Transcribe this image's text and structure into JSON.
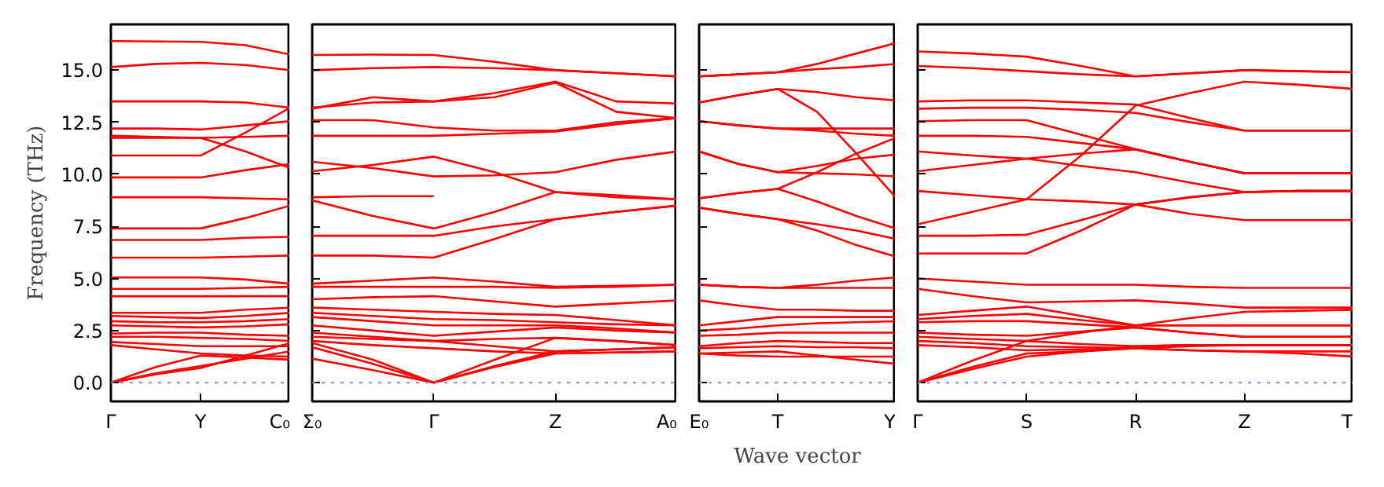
{
  "chart_data": [
    {
      "type": "line",
      "ylabel": "Frequency (THz)",
      "categories": [
        "Γ",
        null,
        "Y",
        null,
        "C₀"
      ],
      "ylim": [
        -0.9,
        17.2
      ],
      "yticks": [
        {
          "value": 0,
          "label": "0.0"
        },
        {
          "value": 2.5,
          "label": "2.5"
        },
        {
          "value": 5,
          "label": "5.0"
        },
        {
          "value": 7.5,
          "label": "7.5"
        },
        {
          "value": 10,
          "label": "10.0"
        },
        {
          "value": 12.5,
          "label": "12.5"
        },
        {
          "value": 15,
          "label": "15.0"
        }
      ],
      "ref_lines": [
        {
          "axis": "y",
          "value": 0,
          "color": "#8080ff",
          "line_style": "dotted"
        }
      ],
      "series": [
        {
          "color": "#ff0000",
          "values": [
            16.4,
            16.38,
            16.36,
            16.2,
            15.75
          ]
        },
        {
          "color": "#ff0000",
          "values": [
            15.15,
            15.3,
            15.35,
            15.25,
            15.0
          ]
        },
        {
          "color": "#ff0000",
          "values": [
            13.5,
            13.5,
            13.5,
            13.45,
            13.2
          ]
        },
        {
          "color": "#ff0000",
          "values": [
            12.2,
            12.2,
            12.15,
            12.35,
            12.55
          ]
        },
        {
          "color": "#ff0000",
          "values": [
            11.85,
            11.8,
            11.75,
            11.1,
            10.3
          ]
        },
        {
          "color": "#ff0000",
          "values": [
            11.75,
            11.75,
            11.75,
            11.8,
            11.85
          ]
        },
        {
          "color": "#ff0000",
          "values": [
            10.9,
            10.9,
            10.9,
            12.0,
            13.2
          ]
        },
        {
          "color": "#ff0000",
          "values": [
            9.85,
            9.85,
            9.85,
            10.2,
            10.5
          ]
        },
        {
          "color": "#ff0000",
          "values": [
            8.9,
            8.9,
            8.9,
            8.85,
            8.8
          ]
        },
        {
          "color": "#ff0000",
          "values": [
            7.4,
            7.4,
            7.4,
            7.9,
            8.5
          ]
        },
        {
          "color": "#ff0000",
          "values": [
            6.85,
            6.85,
            6.85,
            6.95,
            7.0
          ]
        },
        {
          "color": "#ff0000",
          "values": [
            6.0,
            6.0,
            6.0,
            6.05,
            6.1
          ]
        },
        {
          "color": "#ff0000",
          "values": [
            5.05,
            5.05,
            5.05,
            4.95,
            4.75
          ]
        },
        {
          "color": "#ff0000",
          "values": [
            4.5,
            4.5,
            4.5,
            4.55,
            4.6
          ]
        },
        {
          "color": "#ff0000",
          "values": [
            4.15,
            4.15,
            4.15,
            4.15,
            4.15
          ]
        },
        {
          "color": "#ff0000",
          "values": [
            3.35,
            3.35,
            3.35,
            3.5,
            3.6
          ]
        },
        {
          "color": "#ff0000",
          "values": [
            3.2,
            3.15,
            3.1,
            3.2,
            3.35
          ]
        },
        {
          "color": "#ff0000",
          "values": [
            2.95,
            2.9,
            2.9,
            2.95,
            3.05
          ]
        },
        {
          "color": "#ff0000",
          "values": [
            2.75,
            2.7,
            2.65,
            2.7,
            2.8
          ]
        },
        {
          "color": "#ff0000",
          "values": [
            2.35,
            2.4,
            2.4,
            2.3,
            2.25
          ]
        },
        {
          "color": "#ff0000",
          "values": [
            2.2,
            2.2,
            2.15,
            2.1,
            2.0
          ]
        },
        {
          "color": "#ff0000",
          "values": [
            1.95,
            1.85,
            1.75,
            1.75,
            1.75
          ]
        },
        {
          "color": "#ff0000",
          "values": [
            1.8,
            1.6,
            1.4,
            1.3,
            1.25
          ]
        },
        {
          "color": "#ff0000",
          "values": [
            0,
            0.75,
            1.3,
            1.2,
            1.1
          ]
        },
        {
          "color": "#ff0000",
          "values": [
            0,
            0.45,
            0.8,
            1.15,
            1.5
          ]
        },
        {
          "color": "#ff0000",
          "values": [
            0,
            0.4,
            0.7,
            1.3,
            1.9
          ]
        }
      ]
    },
    {
      "type": "line",
      "tick_labels": "x",
      "categories": [
        "Σ₀",
        null,
        "Γ",
        null,
        "Z",
        null,
        "A₀"
      ],
      "ylim": [
        -0.9,
        17.2
      ],
      "yticks": [
        {
          "value": 0,
          "label": null
        },
        {
          "value": 2.5,
          "label": null
        },
        {
          "value": 5,
          "label": null
        },
        {
          "value": 7.5,
          "label": null
        },
        {
          "value": 10,
          "label": null
        },
        {
          "value": 12.5,
          "label": null
        },
        {
          "value": 15,
          "label": null
        }
      ],
      "ref_lines": [
        {
          "axis": "y",
          "value": 0,
          "color": "#8080ff",
          "line_style": "dotted"
        }
      ],
      "series": [
        {
          "color": "#ff0000",
          "values": [
            15.73,
            15.75,
            15.73,
            15.4,
            15.0,
            14.85,
            14.7
          ]
        },
        {
          "color": "#ff0000",
          "values": [
            15.0,
            15.1,
            15.15,
            15.1,
            15.0,
            14.85,
            14.7
          ]
        },
        {
          "color": "#ff0000",
          "values": [
            13.15,
            13.7,
            13.5,
            13.9,
            14.45,
            13.5,
            13.4
          ]
        },
        {
          "color": "#ff0000",
          "values": [
            13.2,
            13.45,
            13.5,
            13.7,
            14.4,
            13.0,
            12.7
          ]
        },
        {
          "color": "#ff0000",
          "values": [
            12.6,
            12.6,
            12.25,
            12.1,
            12.1,
            12.5,
            12.7
          ]
        },
        {
          "color": "#ff0000",
          "values": [
            11.85,
            11.85,
            11.85,
            11.95,
            12.05,
            12.4,
            12.7
          ]
        },
        {
          "color": "#ff0000",
          "values": [
            10.15,
            10.45,
            10.85,
            10.1,
            9.15,
            9.0,
            8.8
          ]
        },
        {
          "color": "#ff0000",
          "values": [
            10.6,
            10.3,
            9.9,
            9.95,
            10.1,
            10.7,
            11.1
          ]
        },
        {
          "color": "#ff0000",
          "values": [
            8.9,
            8.95,
            8.95,
            null,
            null,
            null,
            null
          ]
        },
        {
          "color": "#ff0000",
          "values": [
            8.75,
            8.0,
            7.4,
            8.2,
            9.15,
            8.9,
            8.8
          ]
        },
        {
          "color": "#ff0000",
          "values": [
            7.05,
            7.05,
            7.05,
            7.5,
            7.85,
            8.2,
            8.5
          ]
        },
        {
          "color": "#ff0000",
          "values": [
            6.1,
            6.1,
            6.0,
            6.9,
            7.85,
            8.2,
            8.5
          ]
        },
        {
          "color": "#ff0000",
          "values": [
            4.75,
            4.9,
            5.05,
            4.85,
            4.6,
            4.65,
            4.7
          ]
        },
        {
          "color": "#ff0000",
          "values": [
            4.6,
            4.6,
            4.6,
            4.6,
            4.55,
            4.6,
            4.7
          ]
        },
        {
          "color": "#ff0000",
          "values": [
            4.0,
            4.1,
            4.15,
            3.9,
            3.65,
            3.8,
            3.95
          ]
        },
        {
          "color": "#ff0000",
          "values": [
            3.6,
            3.5,
            3.4,
            3.3,
            3.25,
            3.0,
            2.75
          ]
        },
        {
          "color": "#ff0000",
          "values": [
            3.35,
            3.2,
            3.05,
            3.0,
            2.9,
            2.8,
            2.75
          ]
        },
        {
          "color": "#ff0000",
          "values": [
            3.15,
            2.95,
            2.75,
            2.75,
            2.75,
            2.6,
            2.4
          ]
        },
        {
          "color": "#ff0000",
          "values": [
            2.75,
            2.5,
            2.25,
            2.45,
            2.65,
            2.5,
            2.4
          ]
        },
        {
          "color": "#ff0000",
          "values": [
            2.4,
            2.2,
            2.0,
            2.1,
            2.15,
            2.0,
            1.8
          ]
        },
        {
          "color": "#ff0000",
          "values": [
            2.2,
            2.1,
            2.0,
            1.75,
            1.5,
            1.6,
            1.7
          ]
        },
        {
          "color": "#ff0000",
          "values": [
            2.0,
            1.8,
            1.65,
            1.5,
            1.4,
            1.45,
            1.5
          ]
        },
        {
          "color": "#ff0000",
          "values": [
            1.9,
            1.1,
            0,
            0.8,
            1.5,
            1.6,
            1.7
          ]
        },
        {
          "color": "#ff0000",
          "values": [
            1.7,
            0.9,
            0,
            0.75,
            1.4,
            1.45,
            1.5
          ]
        },
        {
          "color": "#ff0000",
          "values": [
            1.15,
            0.6,
            0,
            1.1,
            2.15,
            2.0,
            1.8
          ]
        }
      ]
    },
    {
      "type": "line",
      "tick_labels": "x",
      "xlabel": "Wave vector",
      "categories": [
        "E₀",
        null,
        "T",
        null,
        null,
        "Y"
      ],
      "ylim": [
        -0.9,
        17.2
      ],
      "yticks": [
        {
          "value": 0,
          "label": null
        },
        {
          "value": 2.5,
          "label": null
        },
        {
          "value": 5,
          "label": null
        },
        {
          "value": 7.5,
          "label": null
        },
        {
          "value": 10,
          "label": null
        },
        {
          "value": 12.5,
          "label": null
        },
        {
          "value": 15,
          "label": null
        }
      ],
      "ref_lines": [
        {
          "axis": "y",
          "value": 0,
          "color": "#8080ff",
          "line_style": "dotted"
        }
      ],
      "series": [
        {
          "color": "#ff0000",
          "values": [
            14.7,
            14.8,
            14.9,
            15.3,
            15.8,
            16.3
          ]
        },
        {
          "color": "#ff0000",
          "values": [
            14.7,
            14.8,
            14.9,
            15.05,
            15.15,
            15.3
          ]
        },
        {
          "color": "#ff0000",
          "values": [
            13.45,
            13.8,
            14.1,
            13.95,
            13.7,
            13.55
          ]
        },
        {
          "color": "#ff0000",
          "values": [
            13.45,
            13.8,
            14.1,
            13.0,
            11.0,
            8.9
          ]
        },
        {
          "color": "#ff0000",
          "values": [
            12.55,
            12.35,
            12.2,
            12.2,
            12.2,
            12.2
          ]
        },
        {
          "color": "#ff0000",
          "values": [
            12.55,
            12.35,
            12.2,
            12.1,
            11.95,
            11.85
          ]
        },
        {
          "color": "#ff0000",
          "values": [
            11.1,
            10.5,
            10.1,
            10.05,
            10.0,
            9.9
          ]
        },
        {
          "color": "#ff0000",
          "values": [
            11.1,
            10.5,
            10.1,
            10.4,
            10.75,
            10.95
          ]
        },
        {
          "color": "#ff0000",
          "values": [
            8.85,
            9.1,
            9.3,
            10.1,
            11.0,
            11.75
          ]
        },
        {
          "color": "#ff0000",
          "values": [
            8.85,
            9.1,
            9.3,
            8.7,
            8.0,
            7.4
          ]
        },
        {
          "color": "#ff0000",
          "values": [
            8.4,
            8.1,
            7.85,
            7.6,
            7.3,
            6.9
          ]
        },
        {
          "color": "#ff0000",
          "values": [
            8.4,
            8.1,
            7.85,
            7.3,
            6.6,
            6.05
          ]
        },
        {
          "color": "#ff0000",
          "values": [
            4.7,
            4.6,
            4.55,
            4.7,
            4.9,
            5.05
          ]
        },
        {
          "color": "#ff0000",
          "values": [
            4.7,
            4.6,
            4.55,
            4.55,
            4.55,
            4.55
          ]
        },
        {
          "color": "#ff0000",
          "values": [
            3.95,
            3.7,
            3.5,
            3.5,
            3.45,
            3.45
          ]
        },
        {
          "color": "#ff0000",
          "values": [
            2.75,
            2.95,
            3.15,
            3.15,
            3.15,
            3.15
          ]
        },
        {
          "color": "#ff0000",
          "values": [
            2.5,
            2.6,
            2.75,
            2.85,
            2.9,
            2.95
          ]
        },
        {
          "color": "#ff0000",
          "values": [
            2.25,
            2.3,
            2.4,
            2.4,
            2.4,
            2.4
          ]
        },
        {
          "color": "#ff0000",
          "values": [
            1.75,
            1.9,
            2.0,
            1.95,
            1.9,
            1.9
          ]
        },
        {
          "color": "#ff0000",
          "values": [
            1.65,
            1.7,
            1.75,
            1.7,
            1.7,
            1.65
          ]
        },
        {
          "color": "#ff0000",
          "values": [
            1.4,
            1.3,
            1.25,
            1.25,
            1.25,
            1.25
          ]
        },
        {
          "color": "#ff0000",
          "values": [
            1.4,
            1.45,
            1.5,
            1.3,
            1.1,
            0.9
          ]
        }
      ]
    },
    {
      "type": "line",
      "tick_labels": "x",
      "categories": [
        "Γ",
        null,
        "S",
        null,
        "R",
        null,
        "Z",
        null,
        "T"
      ],
      "ylim": [
        -0.9,
        17.2
      ],
      "yticks": [
        {
          "value": 0,
          "label": null
        },
        {
          "value": 2.5,
          "label": null
        },
        {
          "value": 5,
          "label": null
        },
        {
          "value": 7.5,
          "label": null
        },
        {
          "value": 10,
          "label": null
        },
        {
          "value": 12.5,
          "label": null
        },
        {
          "value": 15,
          "label": null
        }
      ],
      "ref_lines": [
        {
          "axis": "y",
          "value": 0,
          "color": "#8080ff",
          "line_style": "dotted"
        }
      ],
      "series": [
        {
          "color": "#ff0000",
          "values": [
            15.9,
            15.8,
            15.65,
            15.2,
            14.7,
            14.85,
            15.0,
            14.95,
            14.9
          ]
        },
        {
          "color": "#ff0000",
          "values": [
            15.2,
            15.1,
            14.95,
            14.8,
            14.7,
            14.85,
            15.0,
            14.95,
            14.9
          ]
        },
        {
          "color": "#ff0000",
          "values": [
            13.5,
            13.55,
            13.55,
            13.45,
            13.35,
            12.7,
            12.1,
            12.1,
            12.1
          ]
        },
        {
          "color": "#ff0000",
          "values": [
            13.15,
            13.2,
            13.2,
            13.1,
            12.95,
            12.5,
            12.1,
            12.1,
            12.1
          ]
        },
        {
          "color": "#ff0000",
          "values": [
            12.55,
            12.6,
            12.6,
            11.9,
            11.2,
            10.6,
            10.05,
            10.05,
            10.05
          ]
        },
        {
          "color": "#ff0000",
          "values": [
            11.85,
            11.85,
            11.8,
            11.5,
            11.2,
            10.6,
            10.05,
            10.05,
            10.05
          ]
        },
        {
          "color": "#ff0000",
          "values": [
            11.1,
            10.9,
            10.75,
            10.4,
            10.1,
            9.6,
            9.15,
            9.2,
            9.2
          ]
        },
        {
          "color": "#ff0000",
          "values": [
            10.15,
            10.45,
            10.75,
            11.0,
            11.2,
            10.6,
            10.05,
            10.05,
            10.05
          ]
        },
        {
          "color": "#ff0000",
          "values": [
            9.2,
            9.0,
            8.8,
            8.7,
            8.55,
            8.1,
            7.8,
            7.8,
            7.8
          ]
        },
        {
          "color": "#ff0000",
          "values": [
            7.6,
            8.2,
            8.8,
            10.9,
            13.3,
            13.9,
            14.45,
            14.3,
            14.1
          ]
        },
        {
          "color": "#ff0000",
          "values": [
            7.05,
            7.05,
            7.1,
            7.8,
            8.55,
            8.9,
            9.15,
            9.2,
            9.2
          ]
        },
        {
          "color": "#ff0000",
          "values": [
            6.2,
            6.2,
            6.2,
            7.3,
            8.55,
            8.9,
            9.15,
            9.2,
            9.2
          ]
        },
        {
          "color": "#ff0000",
          "values": [
            5.0,
            4.85,
            4.7,
            4.7,
            4.7,
            4.6,
            4.55,
            4.55,
            4.55
          ]
        },
        {
          "color": "#ff0000",
          "values": [
            4.5,
            4.15,
            3.85,
            3.9,
            3.95,
            3.8,
            3.6,
            3.6,
            3.6
          ]
        },
        {
          "color": "#ff0000",
          "values": [
            3.25,
            3.45,
            3.65,
            3.2,
            2.75,
            3.1,
            3.4,
            3.45,
            3.5
          ]
        },
        {
          "color": "#ff0000",
          "values": [
            3.05,
            3.2,
            3.3,
            3.0,
            2.75,
            2.75,
            2.75,
            2.75,
            2.75
          ]
        },
        {
          "color": "#ff0000",
          "values": [
            2.9,
            2.95,
            2.95,
            2.8,
            2.65,
            2.4,
            2.2,
            2.2,
            2.2
          ]
        },
        {
          "color": "#ff0000",
          "values": [
            2.4,
            2.3,
            2.25,
            2.45,
            2.65,
            2.4,
            2.2,
            2.2,
            2.2
          ]
        },
        {
          "color": "#ff0000",
          "values": [
            2.2,
            2.1,
            2.0,
            1.85,
            1.75,
            1.8,
            1.8,
            1.8,
            1.8
          ]
        },
        {
          "color": "#ff0000",
          "values": [
            2.0,
            1.9,
            1.75,
            1.7,
            1.65,
            1.55,
            1.5,
            1.4,
            1.25
          ]
        },
        {
          "color": "#ff0000",
          "values": [
            1.8,
            1.7,
            1.55,
            1.6,
            1.65,
            1.75,
            1.8,
            1.8,
            1.8
          ]
        },
        {
          "color": "#ff0000",
          "values": [
            0,
            0.65,
            1.25,
            1.5,
            1.75,
            1.8,
            1.8,
            1.8,
            1.8
          ]
        },
        {
          "color": "#ff0000",
          "values": [
            0,
            0.75,
            1.4,
            1.5,
            1.65,
            1.55,
            1.5,
            1.5,
            1.5
          ]
        },
        {
          "color": "#ff0000",
          "values": [
            0,
            1.05,
            2.0,
            2.4,
            2.75,
            2.75,
            2.75,
            2.75,
            2.75
          ]
        }
      ]
    }
  ]
}
